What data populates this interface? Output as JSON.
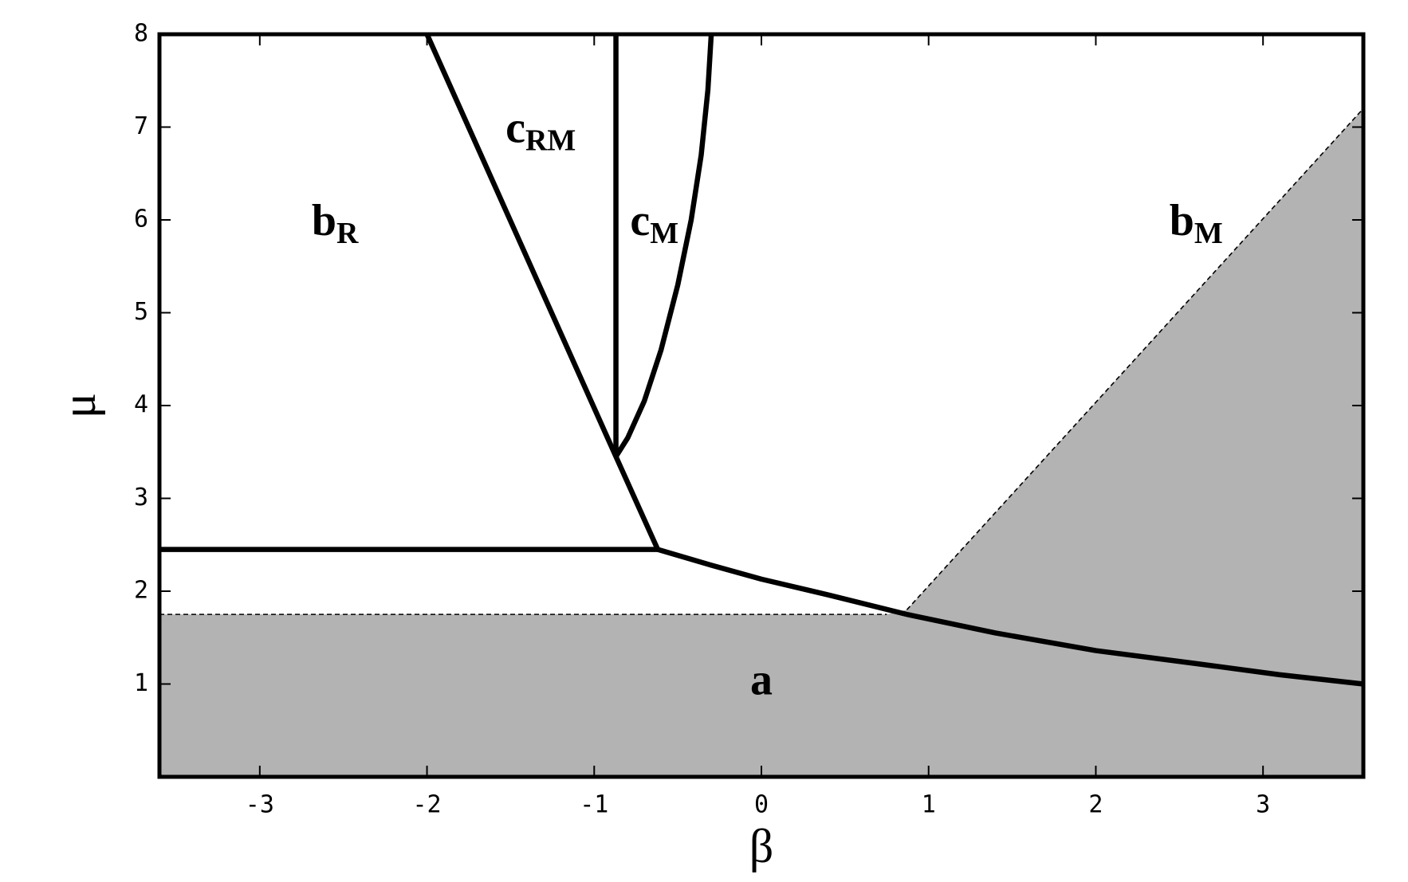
{
  "chart_data": {
    "type": "line",
    "xlabel": "β",
    "ylabel": "μ",
    "xlim": [
      -3.6,
      3.6
    ],
    "ylim": [
      0,
      8
    ],
    "xticks": [
      -3,
      -2,
      -1,
      0,
      1,
      2,
      3
    ],
    "yticks": [
      1,
      2,
      3,
      4,
      5,
      6,
      7,
      8
    ],
    "fills": [
      {
        "color": "#b3b3b3",
        "x": [
          -3.6,
          3.6,
          3.6,
          0.87,
          0.75,
          -3.6
        ],
        "y": [
          0,
          0,
          7.2,
          1.8,
          1.75,
          1.75
        ]
      }
    ],
    "series": [
      {
        "color": "#000000",
        "linestyle": "dashed",
        "x": [
          -3.6,
          0.75
        ],
        "y": [
          1.75,
          1.75
        ]
      },
      {
        "color": "#000000",
        "linestyle": "dashed",
        "x": [
          0.87,
          3.6
        ],
        "y": [
          1.8,
          7.2
        ]
      },
      {
        "color": "#000000",
        "linestyle": "solid",
        "x": [
          -3.6,
          -0.62
        ],
        "y": [
          2.45,
          2.45
        ]
      },
      {
        "color": "#000000",
        "linestyle": "solid",
        "x": [
          -0.62,
          -0.87,
          -2.0
        ],
        "y": [
          2.45,
          3.45,
          8
        ]
      },
      {
        "color": "#000000",
        "linestyle": "solid",
        "x": [
          -0.87,
          -0.87
        ],
        "y": [
          3.45,
          8
        ]
      },
      {
        "color": "#000000",
        "linestyle": "solid",
        "x": [
          -0.87,
          -0.8,
          -0.7,
          -0.6,
          -0.5,
          -0.42,
          -0.36,
          -0.32,
          -0.3
        ],
        "y": [
          3.45,
          3.65,
          4.05,
          4.6,
          5.3,
          6.0,
          6.7,
          7.4,
          8
        ]
      },
      {
        "color": "#000000",
        "linestyle": "solid",
        "x": [
          -0.62,
          -0.3,
          0,
          0.4,
          0.87,
          1.4,
          2.0,
          2.6,
          3.1,
          3.6
        ],
        "y": [
          2.45,
          2.28,
          2.13,
          1.96,
          1.75,
          1.55,
          1.36,
          1.22,
          1.1,
          1.0
        ]
      }
    ],
    "annotations": [
      {
        "text": "b",
        "sub": "R",
        "x": -2.55,
        "y": 5.95
      },
      {
        "text": "c",
        "sub": "RM",
        "x": -1.32,
        "y": 6.95
      },
      {
        "text": "c",
        "sub": "M",
        "x": -0.64,
        "y": 5.95
      },
      {
        "text": "b",
        "sub": "M",
        "x": 2.6,
        "y": 5.95
      },
      {
        "text": "a",
        "x": 0,
        "y": 1.0
      }
    ]
  }
}
